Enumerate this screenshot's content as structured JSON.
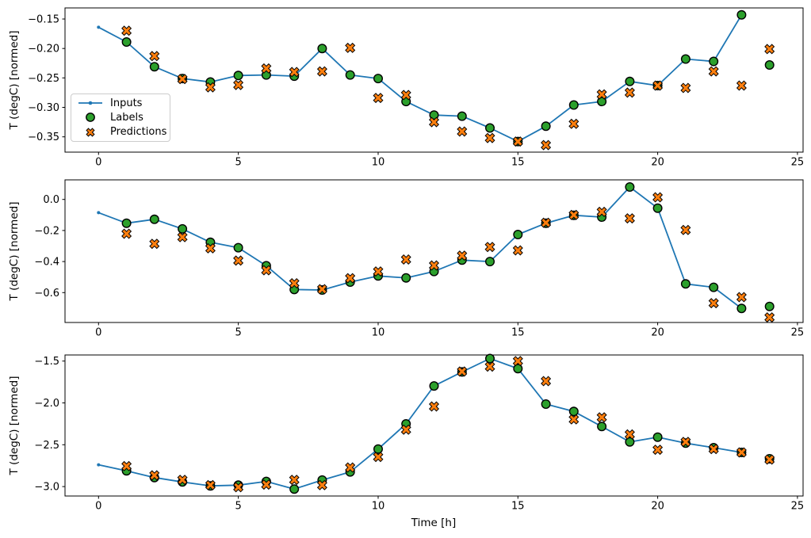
{
  "colors": {
    "inputs": "#1f77b4",
    "labels": "#2ca02c",
    "predictions": "#ff7f0e",
    "marker_edge": "#000000",
    "legend_border": "#cccccc",
    "text": "#000000",
    "background": "#ffffff"
  },
  "legend": {
    "position": "upper left",
    "items": [
      {
        "label": "Inputs",
        "glyph": "line-with-dot"
      },
      {
        "label": "Labels",
        "glyph": "green-circle"
      },
      {
        "label": "Predictions",
        "glyph": "orange-x"
      }
    ]
  },
  "chart_data": [
    {
      "type": "line",
      "title": "",
      "xlabel": "",
      "ylabel": "T (degC) [normed]",
      "grid": false,
      "xlim": [
        -1.2,
        25.2
      ],
      "ylim": [
        -0.376,
        -0.1312
      ],
      "xticks": [
        {
          "value": 0,
          "label": "0"
        },
        {
          "value": 5,
          "label": "5"
        },
        {
          "value": 10,
          "label": "10"
        },
        {
          "value": 15,
          "label": "15"
        },
        {
          "value": 20,
          "label": "20"
        },
        {
          "value": 25,
          "label": "25"
        }
      ],
      "yticks": [
        {
          "value": -0.15,
          "label": "−0.15"
        },
        {
          "value": -0.2,
          "label": "−0.20"
        },
        {
          "value": -0.25,
          "label": "−0.25"
        },
        {
          "value": -0.3,
          "label": "−0.30"
        },
        {
          "value": -0.35,
          "label": "−0.35"
        }
      ],
      "series": [
        {
          "name": "Inputs",
          "type": "line",
          "x": [
            0,
            1,
            2,
            3,
            4,
            5,
            6,
            7,
            8,
            9,
            10,
            11,
            12,
            13,
            14,
            15,
            16,
            17,
            18,
            19,
            20,
            21,
            22,
            23
          ],
          "y": [
            -0.164,
            -0.189,
            -0.231,
            -0.251,
            -0.257,
            -0.246,
            -0.245,
            -0.247,
            -0.2,
            -0.245,
            -0.251,
            -0.29,
            -0.313,
            -0.315,
            -0.335,
            -0.358,
            -0.332,
            -0.296,
            -0.29,
            -0.256,
            -0.263,
            -0.218,
            -0.222,
            -0.143
          ]
        },
        {
          "name": "Labels",
          "type": "scatter",
          "x": [
            1,
            2,
            3,
            4,
            5,
            6,
            7,
            8,
            9,
            10,
            11,
            12,
            13,
            14,
            15,
            16,
            17,
            18,
            19,
            20,
            21,
            22,
            23,
            24
          ],
          "y": [
            -0.189,
            -0.231,
            -0.251,
            -0.257,
            -0.246,
            -0.245,
            -0.247,
            -0.2,
            -0.245,
            -0.251,
            -0.29,
            -0.313,
            -0.315,
            -0.335,
            -0.358,
            -0.332,
            -0.296,
            -0.29,
            -0.256,
            -0.263,
            -0.218,
            -0.222,
            -0.143,
            -0.228
          ]
        },
        {
          "name": "Predictions",
          "type": "scatter",
          "x": [
            1,
            2,
            3,
            4,
            5,
            6,
            7,
            8,
            9,
            10,
            11,
            12,
            13,
            14,
            15,
            16,
            17,
            18,
            19,
            20,
            21,
            22,
            23,
            24
          ],
          "y": [
            -0.17,
            -0.213,
            -0.252,
            -0.266,
            -0.262,
            -0.234,
            -0.24,
            -0.239,
            -0.199,
            -0.284,
            -0.279,
            -0.325,
            -0.341,
            -0.352,
            -0.358,
            -0.364,
            -0.328,
            -0.278,
            -0.275,
            -0.263,
            -0.267,
            -0.239,
            -0.263,
            -0.201
          ]
        }
      ]
    },
    {
      "type": "line",
      "title": "",
      "xlabel": "",
      "ylabel": "T (degC) [normed]",
      "grid": false,
      "xlim": [
        -1.2,
        25.2
      ],
      "ylim": [
        -0.7924,
        0.126
      ],
      "xticks": [
        {
          "value": 0,
          "label": "0"
        },
        {
          "value": 5,
          "label": "5"
        },
        {
          "value": 10,
          "label": "10"
        },
        {
          "value": 15,
          "label": "15"
        },
        {
          "value": 20,
          "label": "20"
        },
        {
          "value": 25,
          "label": "25"
        }
      ],
      "yticks": [
        {
          "value": 0.0,
          "label": "0.0"
        },
        {
          "value": -0.2,
          "label": "−0.2"
        },
        {
          "value": -0.4,
          "label": "−0.4"
        },
        {
          "value": -0.6,
          "label": "−0.6"
        }
      ],
      "series": [
        {
          "name": "Inputs",
          "type": "line",
          "x": [
            0,
            1,
            2,
            3,
            4,
            5,
            6,
            7,
            8,
            9,
            10,
            11,
            12,
            13,
            14,
            15,
            16,
            17,
            18,
            19,
            20,
            21,
            22,
            23
          ],
          "y": [
            -0.085,
            -0.153,
            -0.128,
            -0.19,
            -0.276,
            -0.311,
            -0.427,
            -0.58,
            -0.583,
            -0.532,
            -0.493,
            -0.505,
            -0.464,
            -0.391,
            -0.4,
            -0.226,
            -0.153,
            -0.102,
            -0.114,
            0.08,
            -0.056,
            -0.544,
            -0.566,
            -0.702
          ]
        },
        {
          "name": "Labels",
          "type": "scatter",
          "x": [
            1,
            2,
            3,
            4,
            5,
            6,
            7,
            8,
            9,
            10,
            11,
            12,
            13,
            14,
            15,
            16,
            17,
            18,
            19,
            20,
            21,
            22,
            23,
            24
          ],
          "y": [
            -0.153,
            -0.128,
            -0.19,
            -0.276,
            -0.311,
            -0.427,
            -0.58,
            -0.583,
            -0.532,
            -0.493,
            -0.505,
            -0.464,
            -0.391,
            -0.4,
            -0.226,
            -0.153,
            -0.102,
            -0.114,
            0.08,
            -0.056,
            -0.544,
            -0.566,
            -0.702,
            -0.689
          ]
        },
        {
          "name": "Predictions",
          "type": "scatter",
          "x": [
            1,
            2,
            3,
            4,
            5,
            6,
            7,
            8,
            9,
            10,
            11,
            12,
            13,
            14,
            15,
            16,
            17,
            18,
            19,
            20,
            21,
            22,
            23,
            24
          ],
          "y": [
            -0.221,
            -0.286,
            -0.243,
            -0.315,
            -0.394,
            -0.456,
            -0.54,
            -0.578,
            -0.507,
            -0.464,
            -0.387,
            -0.425,
            -0.362,
            -0.306,
            -0.328,
            -0.15,
            -0.1,
            -0.08,
            -0.122,
            0.014,
            -0.197,
            -0.668,
            -0.629,
            -0.76
          ]
        }
      ]
    },
    {
      "type": "line",
      "title": "",
      "xlabel": "Time [h]",
      "ylabel": "T (degC) [normed]",
      "grid": false,
      "xlim": [
        -1.2,
        25.2
      ],
      "ylim": [
        -3.113,
        -1.427
      ],
      "xticks": [
        {
          "value": 0,
          "label": "0"
        },
        {
          "value": 5,
          "label": "5"
        },
        {
          "value": 10,
          "label": "10"
        },
        {
          "value": 15,
          "label": "15"
        },
        {
          "value": 20,
          "label": "20"
        },
        {
          "value": 25,
          "label": "25"
        }
      ],
      "yticks": [
        {
          "value": -1.5,
          "label": "−1.5"
        },
        {
          "value": -2.0,
          "label": "−2.0"
        },
        {
          "value": -2.5,
          "label": "−2.5"
        },
        {
          "value": -3.0,
          "label": "−3.0"
        }
      ],
      "series": [
        {
          "name": "Inputs",
          "type": "line",
          "x": [
            0,
            1,
            2,
            3,
            4,
            5,
            6,
            7,
            8,
            9,
            10,
            11,
            12,
            13,
            14,
            15,
            16,
            17,
            18,
            19,
            20,
            21,
            22,
            23
          ],
          "y": [
            -2.74,
            -2.812,
            -2.892,
            -2.945,
            -2.992,
            -2.983,
            -2.939,
            -3.03,
            -2.923,
            -2.825,
            -2.551,
            -2.251,
            -1.797,
            -1.63,
            -1.47,
            -1.59,
            -2.014,
            -2.102,
            -2.282,
            -2.466,
            -2.409,
            -2.481,
            -2.535,
            -2.592
          ]
        },
        {
          "name": "Labels",
          "type": "scatter",
          "x": [
            1,
            2,
            3,
            4,
            5,
            6,
            7,
            8,
            9,
            10,
            11,
            12,
            13,
            14,
            15,
            16,
            17,
            18,
            19,
            20,
            21,
            22,
            23,
            24
          ],
          "y": [
            -2.812,
            -2.892,
            -2.945,
            -2.992,
            -2.983,
            -2.939,
            -3.03,
            -2.923,
            -2.825,
            -2.551,
            -2.251,
            -1.797,
            -1.63,
            -1.47,
            -1.59,
            -2.014,
            -2.102,
            -2.282,
            -2.466,
            -2.409,
            -2.481,
            -2.535,
            -2.592,
            -2.668
          ]
        },
        {
          "name": "Predictions",
          "type": "scatter",
          "x": [
            1,
            2,
            3,
            4,
            5,
            6,
            7,
            8,
            9,
            10,
            11,
            12,
            13,
            14,
            15,
            16,
            17,
            18,
            19,
            20,
            21,
            22,
            23,
            24
          ],
          "y": [
            -2.756,
            -2.866,
            -2.92,
            -2.983,
            -3.008,
            -2.977,
            -2.92,
            -2.983,
            -2.772,
            -2.646,
            -2.32,
            -2.043,
            -1.625,
            -1.566,
            -1.5,
            -1.74,
            -2.197,
            -2.172,
            -2.377,
            -2.56,
            -2.466,
            -2.551,
            -2.592,
            -2.677
          ]
        }
      ]
    }
  ]
}
